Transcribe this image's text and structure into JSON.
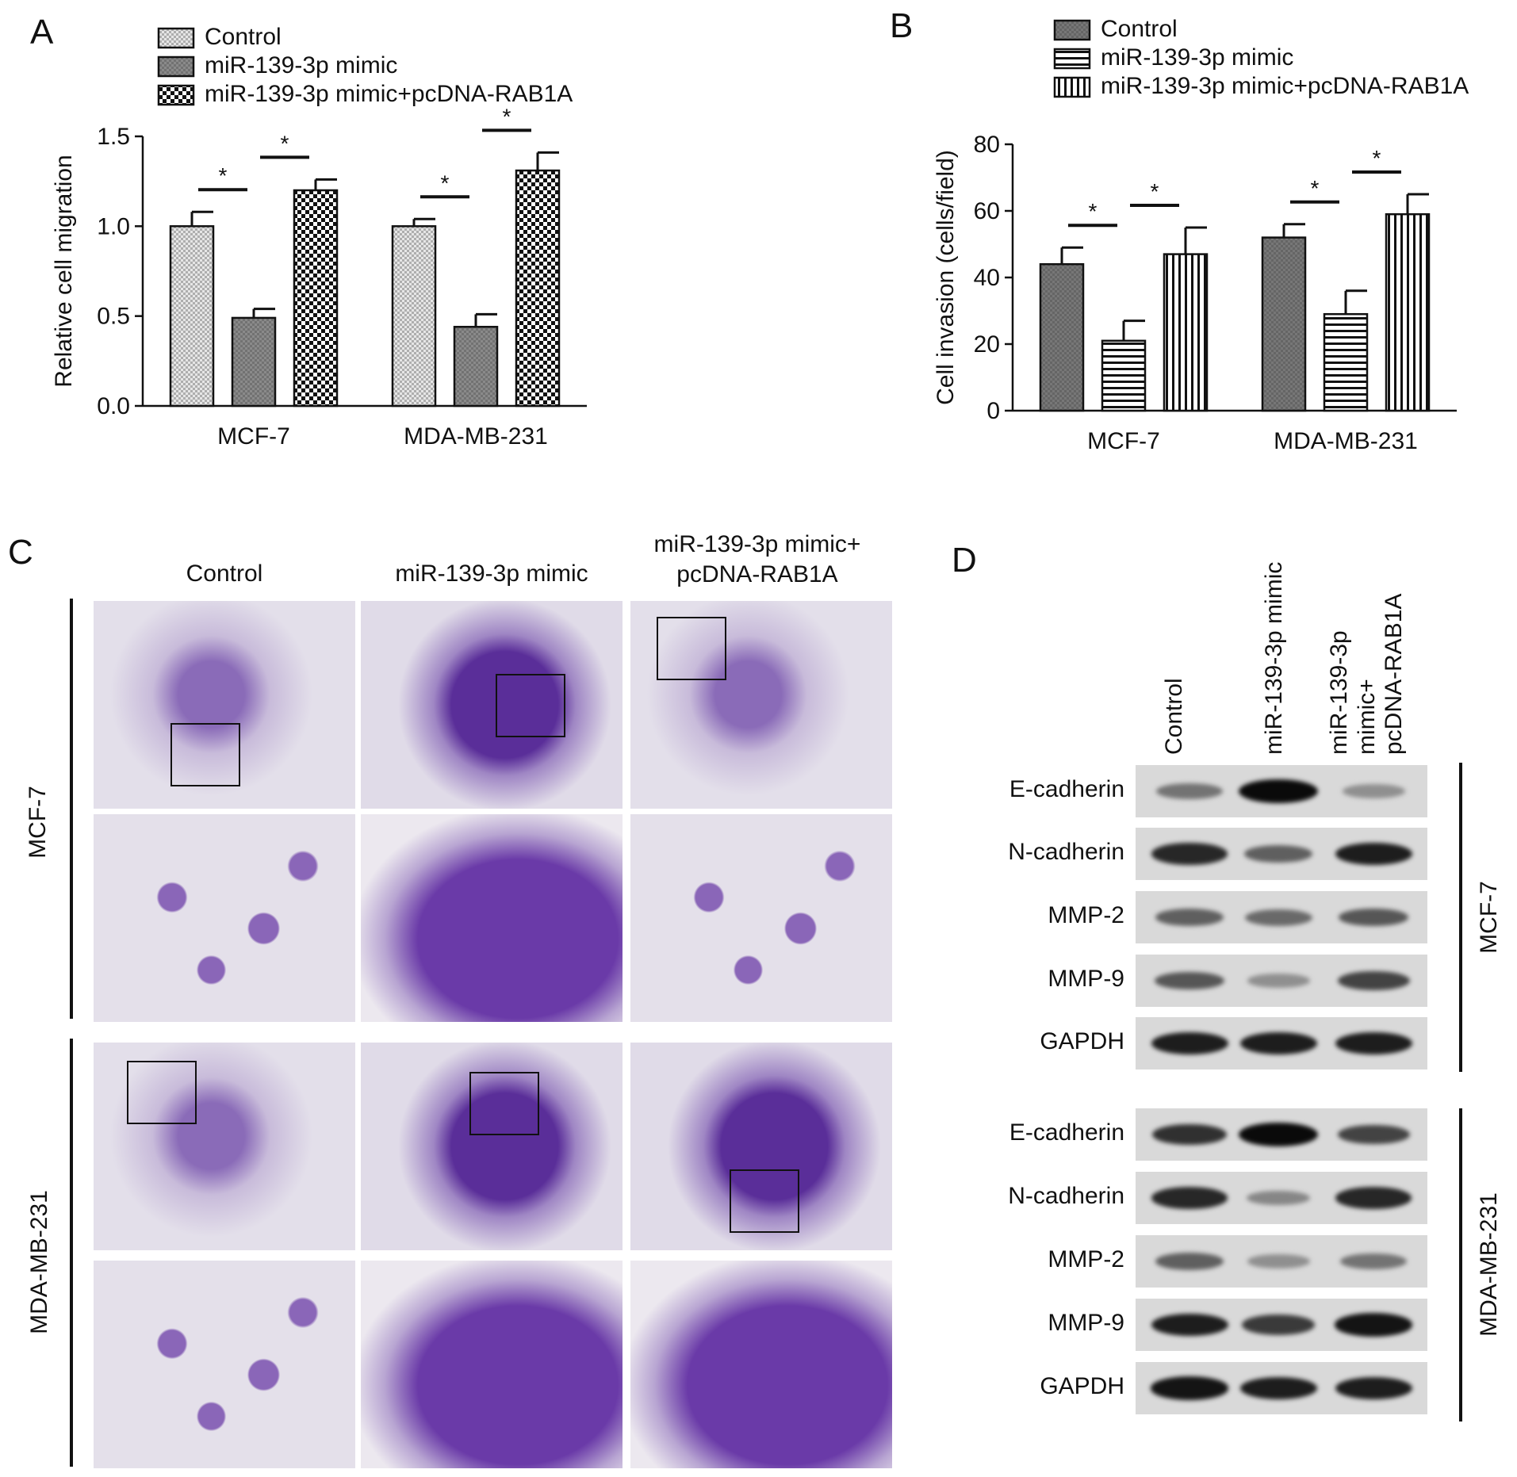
{
  "panels": {
    "a": "A",
    "b": "B",
    "c": "C",
    "d": "D"
  },
  "chart_data": [
    {
      "type": "bar",
      "panel": "A",
      "title": "",
      "xlabel": "",
      "ylabel": "Relative cell migration",
      "ylim": [
        0,
        1.5
      ],
      "yticks": [
        "0.0",
        "0.5",
        "1.0",
        "1.5"
      ],
      "categories": [
        "MCF-7",
        "MDA-MB-231"
      ],
      "series": [
        {
          "name": "Control",
          "values": [
            1.0,
            1.0
          ],
          "errors": [
            0.08,
            0.04
          ]
        },
        {
          "name": "miR-139-3p mimic",
          "values": [
            0.49,
            0.44
          ],
          "errors": [
            0.05,
            0.07
          ]
        },
        {
          "name": "miR-139-3p mimic+pcDNA-RAB1A",
          "values": [
            1.2,
            1.31
          ],
          "errors": [
            0.06,
            0.1
          ]
        }
      ],
      "significance": "*",
      "legend": "top-left"
    },
    {
      "type": "bar",
      "panel": "B",
      "title": "",
      "xlabel": "",
      "ylabel": "Cell invasion (cells/field)",
      "ylim": [
        0,
        80
      ],
      "yticks": [
        "0",
        "20",
        "40",
        "60",
        "80"
      ],
      "categories": [
        "MCF-7",
        "MDA-MB-231"
      ],
      "series": [
        {
          "name": "Control",
          "values": [
            44,
            52
          ],
          "errors": [
            5,
            4
          ]
        },
        {
          "name": "miR-139-3p mimic",
          "values": [
            21,
            29
          ],
          "errors": [
            6,
            7
          ]
        },
        {
          "name": "miR-139-3p mimic+pcDNA-RAB1A",
          "values": [
            47,
            59
          ],
          "errors": [
            8,
            6
          ]
        }
      ],
      "significance": "*",
      "legend": "top-left"
    }
  ],
  "panel_c": {
    "columns": [
      "Control",
      "miR-139-3p mimic",
      "miR-139-3p mimic+\npcDNA-RAB1A"
    ],
    "rows": [
      "MCF-7",
      "MDA-MB-231"
    ]
  },
  "panel_d": {
    "lanes": [
      "Control",
      "miR-139-3p mimic",
      "miR-139-3p mimic+\npcDNA-RAB1A"
    ],
    "proteins": [
      "E-cadherin",
      "N-cadherin",
      "MMP-2",
      "MMP-9",
      "GAPDH"
    ],
    "cell_lines": [
      "MCF-7",
      "MDA-MB-231"
    ],
    "band_intensity": {
      "MCF-7": [
        [
          0.45,
          1.0,
          0.3
        ],
        [
          0.85,
          0.55,
          0.9
        ],
        [
          0.55,
          0.5,
          0.6
        ],
        [
          0.6,
          0.3,
          0.7
        ],
        [
          0.9,
          0.9,
          0.9
        ]
      ],
      "MDA-MB-231": [
        [
          0.8,
          1.0,
          0.7
        ],
        [
          0.85,
          0.35,
          0.85
        ],
        [
          0.55,
          0.3,
          0.45
        ],
        [
          0.9,
          0.75,
          0.95
        ],
        [
          0.95,
          0.9,
          0.9
        ]
      ]
    }
  }
}
